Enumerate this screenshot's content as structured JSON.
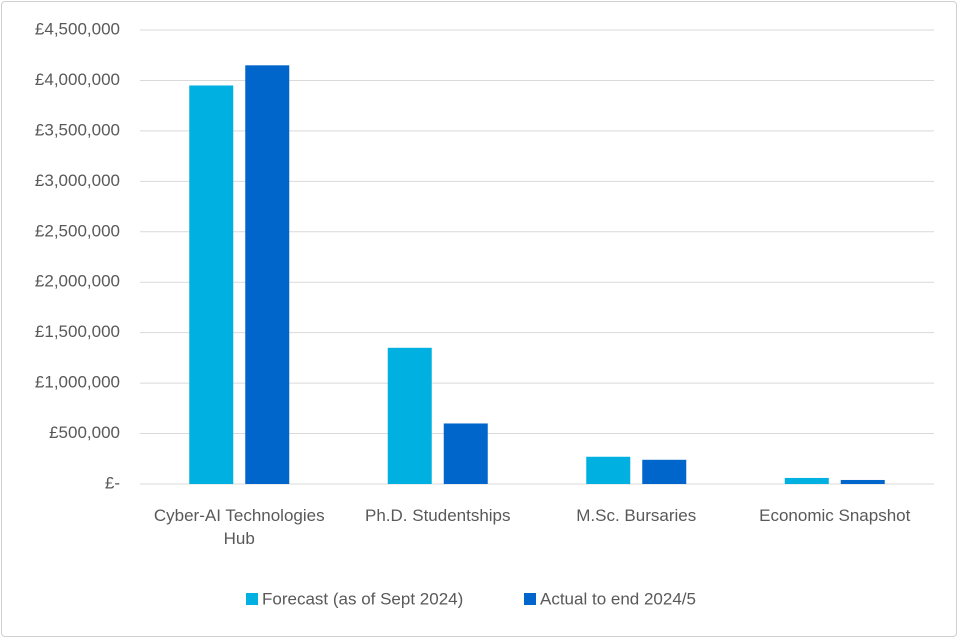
{
  "chart_data": {
    "type": "bar",
    "categories": [
      "Cyber-AI Technologies Hub",
      "Ph.D. Studentships",
      "M.Sc. Bursaries",
      "Economic Snapshot"
    ],
    "series": [
      {
        "name": "Forecast (as of Sept 2024)",
        "color": "#00b0e0",
        "values": [
          3950000,
          1350000,
          270000,
          60000
        ]
      },
      {
        "name": "Actual to end 2024/5",
        "color": "#0066cc",
        "values": [
          4150000,
          600000,
          240000,
          40000
        ]
      }
    ],
    "ylim": [
      0,
      4500000
    ],
    "yticks": [
      {
        "value": 0,
        "label": "£-"
      },
      {
        "value": 500000,
        "label": "£500,000"
      },
      {
        "value": 1000000,
        "label": "£1,000,000"
      },
      {
        "value": 1500000,
        "label": "£1,500,000"
      },
      {
        "value": 2000000,
        "label": "£2,000,000"
      },
      {
        "value": 2500000,
        "label": "£2,500,000"
      },
      {
        "value": 3000000,
        "label": "£3,000,000"
      },
      {
        "value": 3500000,
        "label": "£3,500,000"
      },
      {
        "value": 4000000,
        "label": "£4,000,000"
      },
      {
        "value": 4500000,
        "label": "£4,500,000"
      }
    ],
    "grid": true,
    "legend": "bottom"
  }
}
